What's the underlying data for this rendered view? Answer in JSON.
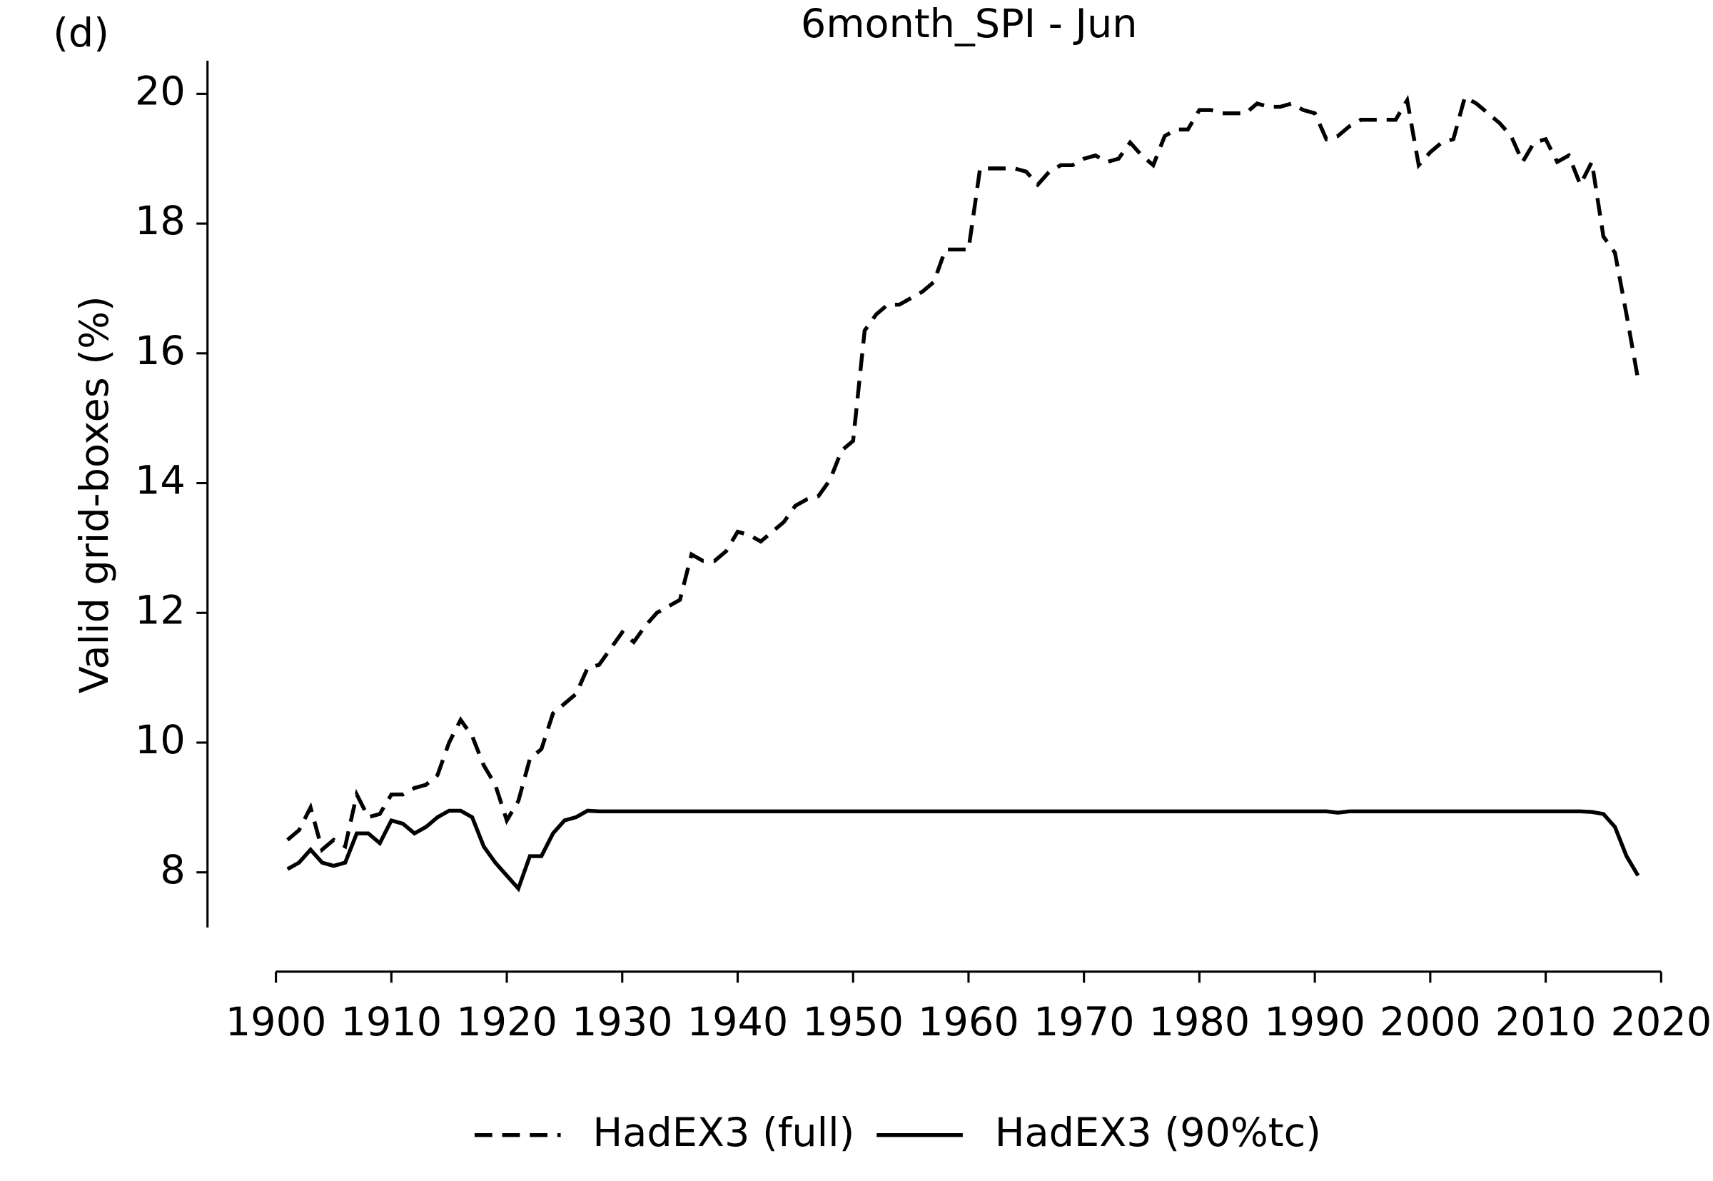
{
  "chart_data": {
    "type": "line",
    "panel_label": "(d)",
    "title": "6month_SPI - Jun",
    "ylabel": "Valid grid-boxes (%)",
    "x": [
      1901,
      1902,
      1903,
      1904,
      1905,
      1906,
      1907,
      1908,
      1909,
      1910,
      1911,
      1912,
      1913,
      1914,
      1915,
      1916,
      1917,
      1918,
      1919,
      1920,
      1921,
      1922,
      1923,
      1924,
      1925,
      1926,
      1927,
      1928,
      1929,
      1930,
      1931,
      1932,
      1933,
      1934,
      1935,
      1936,
      1937,
      1938,
      1939,
      1940,
      1941,
      1942,
      1943,
      1944,
      1945,
      1946,
      1947,
      1948,
      1949,
      1950,
      1951,
      1952,
      1953,
      1954,
      1955,
      1956,
      1957,
      1958,
      1959,
      1960,
      1961,
      1962,
      1963,
      1964,
      1965,
      1966,
      1967,
      1968,
      1969,
      1970,
      1971,
      1972,
      1973,
      1974,
      1975,
      1976,
      1977,
      1978,
      1979,
      1980,
      1981,
      1982,
      1983,
      1984,
      1985,
      1986,
      1987,
      1988,
      1989,
      1990,
      1991,
      1992,
      1993,
      1994,
      1995,
      1996,
      1997,
      1998,
      1999,
      2000,
      2001,
      2002,
      2003,
      2004,
      2005,
      2006,
      2007,
      2008,
      2009,
      2010,
      2011,
      2012,
      2013,
      2014,
      2015,
      2016,
      2017,
      2018
    ],
    "series": [
      {
        "name": "HadEX3 (full)",
        "color": "#000000",
        "style": "dashed",
        "values": [
          8.5,
          8.65,
          9.0,
          8.35,
          8.5,
          8.4,
          9.2,
          8.85,
          8.9,
          9.2,
          9.2,
          9.3,
          9.35,
          9.5,
          10.0,
          10.35,
          10.1,
          9.65,
          9.35,
          8.8,
          9.1,
          9.75,
          9.9,
          10.45,
          10.6,
          10.75,
          11.15,
          11.2,
          11.45,
          11.7,
          11.55,
          11.8,
          12.0,
          12.1,
          12.2,
          12.9,
          12.8,
          12.8,
          12.95,
          13.25,
          13.2,
          13.1,
          13.25,
          13.4,
          13.65,
          13.75,
          13.8,
          14.05,
          14.5,
          14.65,
          16.35,
          16.6,
          16.75,
          16.75,
          16.85,
          16.95,
          17.1,
          17.6,
          17.6,
          17.6,
          18.85,
          18.85,
          18.85,
          18.85,
          18.8,
          18.6,
          18.8,
          18.9,
          18.9,
          19.0,
          19.05,
          18.95,
          19.0,
          19.25,
          19.05,
          18.9,
          19.35,
          19.45,
          19.45,
          19.75,
          19.75,
          19.7,
          19.7,
          19.7,
          19.85,
          19.8,
          19.8,
          19.85,
          19.75,
          19.7,
          19.3,
          19.35,
          19.5,
          19.6,
          19.6,
          19.6,
          19.6,
          19.9,
          18.9,
          19.1,
          19.25,
          19.3,
          19.95,
          19.85,
          19.7,
          19.55,
          19.35,
          18.95,
          19.25,
          19.3,
          18.95,
          19.05,
          18.6,
          18.95,
          17.8,
          17.55,
          16.6,
          15.6
        ]
      },
      {
        "name": "HadEX3 (90%tc)",
        "color": "#000000",
        "style": "solid",
        "values": [
          8.05,
          8.15,
          8.35,
          8.15,
          8.1,
          8.15,
          8.6,
          8.6,
          8.45,
          8.8,
          8.75,
          8.6,
          8.7,
          8.85,
          8.95,
          8.95,
          8.85,
          8.4,
          8.15,
          7.95,
          7.75,
          8.25,
          8.25,
          8.6,
          8.8,
          8.85,
          8.95,
          8.94,
          8.94,
          8.94,
          8.94,
          8.94,
          8.94,
          8.94,
          8.94,
          8.94,
          8.94,
          8.94,
          8.94,
          8.94,
          8.94,
          8.94,
          8.94,
          8.94,
          8.94,
          8.94,
          8.94,
          8.94,
          8.94,
          8.94,
          8.94,
          8.94,
          8.94,
          8.94,
          8.94,
          8.94,
          8.94,
          8.94,
          8.94,
          8.94,
          8.94,
          8.94,
          8.94,
          8.94,
          8.94,
          8.94,
          8.94,
          8.94,
          8.94,
          8.94,
          8.94,
          8.94,
          8.94,
          8.94,
          8.94,
          8.94,
          8.94,
          8.94,
          8.94,
          8.94,
          8.94,
          8.94,
          8.94,
          8.94,
          8.94,
          8.94,
          8.94,
          8.94,
          8.94,
          8.94,
          8.94,
          8.92,
          8.94,
          8.94,
          8.94,
          8.94,
          8.94,
          8.94,
          8.94,
          8.94,
          8.94,
          8.94,
          8.94,
          8.94,
          8.94,
          8.94,
          8.94,
          8.94,
          8.94,
          8.94,
          8.94,
          8.94,
          8.94,
          8.93,
          8.9,
          8.7,
          8.25,
          7.95
        ]
      }
    ],
    "xlim": [
      1900,
      2020
    ],
    "xticks": [
      1900,
      1910,
      1920,
      1930,
      1940,
      1950,
      1960,
      1970,
      1980,
      1990,
      2000,
      2010,
      2020
    ],
    "ylim": [
      7.15,
      20.51
    ],
    "yticks": [
      8,
      10,
      12,
      14,
      16,
      18,
      20
    ],
    "grid": false,
    "legend": "bottom"
  }
}
